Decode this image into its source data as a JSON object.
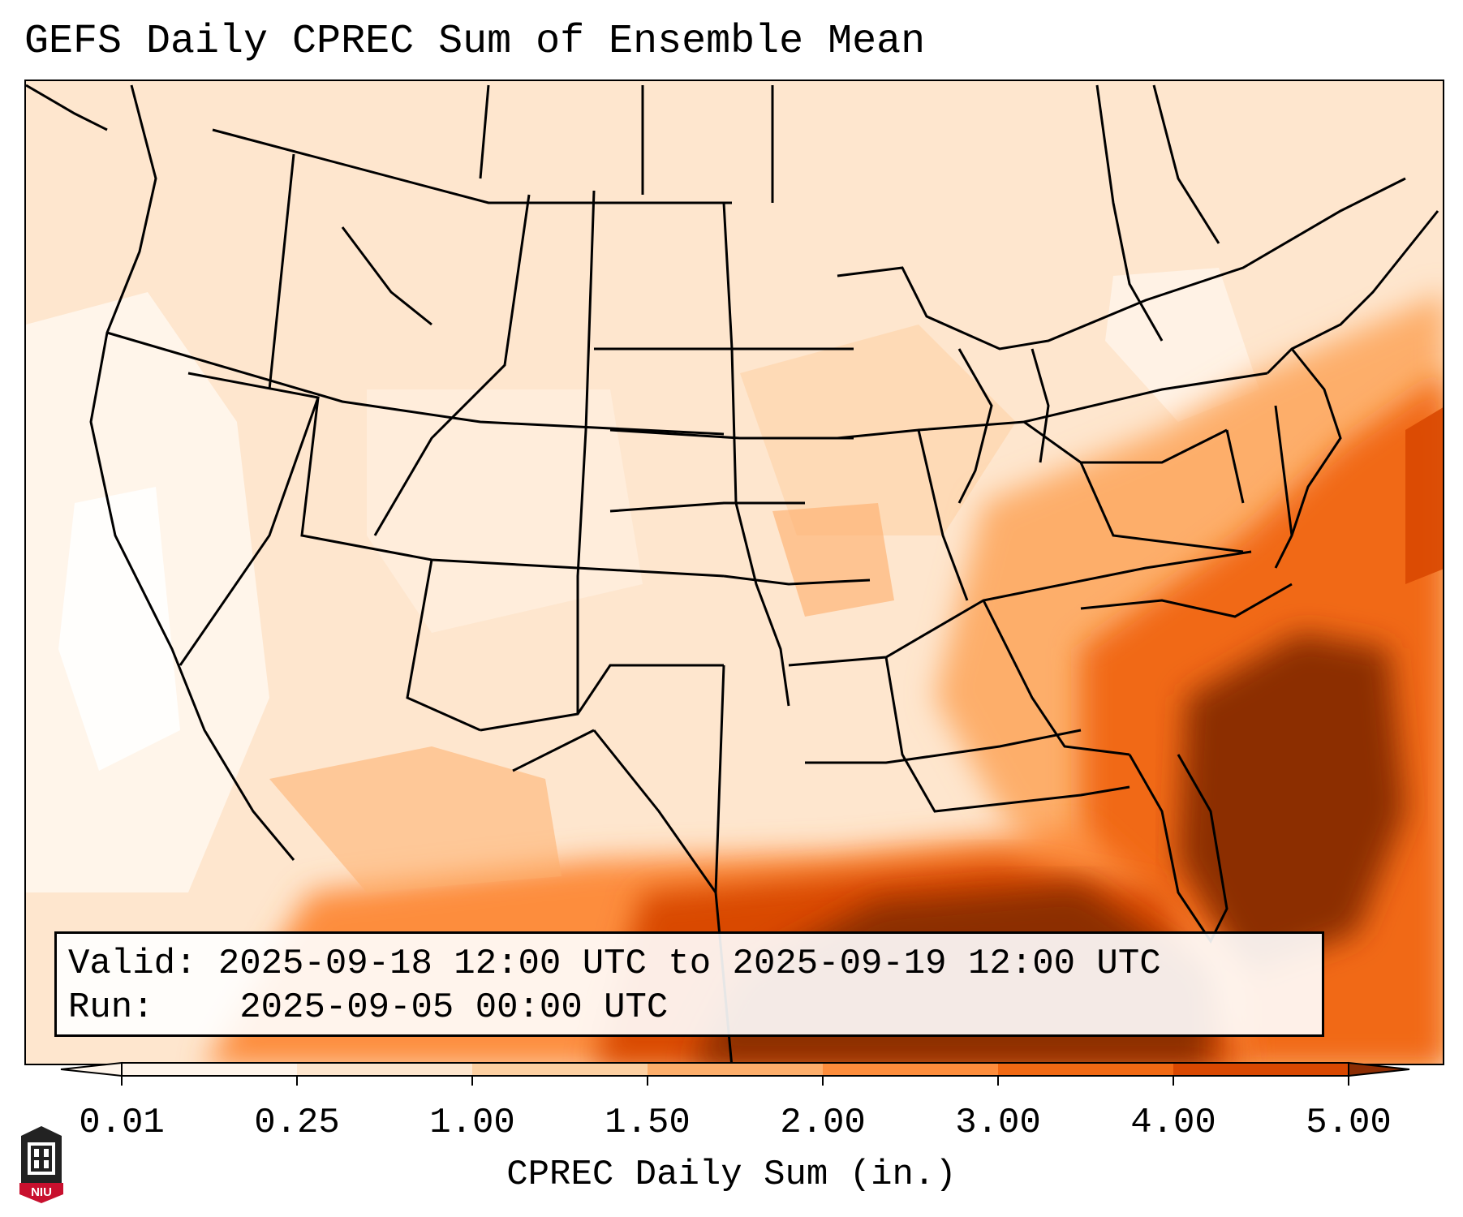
{
  "title": "GEFS Daily CPREC Sum of Ensemble Mean",
  "info": {
    "valid_label": "Valid:",
    "valid_value": "2025-09-18 12:00 UTC to 2025-09-19 12:00 UTC",
    "run_label": "Run:",
    "run_value": "2025-09-05 00:00 UTC"
  },
  "colorbar": {
    "label": "CPREC Daily Sum (in.)",
    "ticks": [
      "0.01",
      "0.25",
      "1.00",
      "1.50",
      "2.00",
      "3.00",
      "4.00",
      "5.00"
    ],
    "colors": [
      "#fff5eb",
      "#fee6ce",
      "#fdd0a2",
      "#fdae6b",
      "#fd8d3c",
      "#f16913",
      "#d94801",
      "#8c2d04"
    ],
    "extend": "both"
  },
  "logo": {
    "text": "NIU",
    "icon": "niu-logo-icon"
  }
}
